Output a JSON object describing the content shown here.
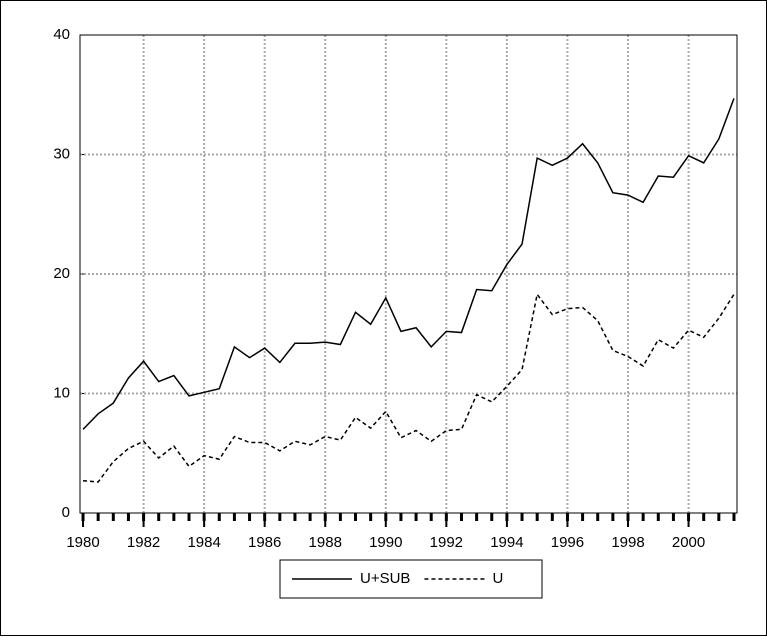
{
  "chart_data": {
    "type": "line",
    "x": [
      1980,
      1980.5,
      1981,
      1981.5,
      1982,
      1982.5,
      1983,
      1983.5,
      1984,
      1984.5,
      1985,
      1985.5,
      1986,
      1986.5,
      1987,
      1987.5,
      1988,
      1988.5,
      1989,
      1989.5,
      1990,
      1990.5,
      1991,
      1991.5,
      1992,
      1992.5,
      1993,
      1993.5,
      1994,
      1994.5,
      1995,
      1995.5,
      1996,
      1996.5,
      1997,
      1997.5,
      1998,
      1998.5,
      1999,
      1999.5,
      2000,
      2000.5,
      2001,
      2001.5
    ],
    "series": [
      {
        "name": "U+SUB",
        "color": "#000000",
        "dash": "none",
        "values": [
          7.0,
          8.3,
          9.2,
          11.3,
          12.7,
          11.0,
          11.5,
          9.8,
          10.1,
          10.4,
          13.9,
          13.0,
          13.8,
          12.6,
          14.2,
          14.2,
          14.3,
          14.1,
          16.8,
          15.8,
          18.0,
          15.2,
          15.5,
          13.9,
          15.2,
          15.1,
          18.7,
          18.6,
          20.8,
          22.5,
          29.7,
          29.1,
          29.7,
          30.9,
          29.3,
          26.8,
          26.6,
          26.0,
          28.2,
          28.1,
          29.9,
          29.3,
          31.3,
          34.7
        ]
      },
      {
        "name": "U",
        "color": "#000000",
        "dash": "4 3",
        "values": [
          2.7,
          2.6,
          4.3,
          5.4,
          6.0,
          4.6,
          5.6,
          3.9,
          4.8,
          4.5,
          6.4,
          5.9,
          5.9,
          5.2,
          6.0,
          5.7,
          6.4,
          6.1,
          8.0,
          7.1,
          8.5,
          6.3,
          6.9,
          6.0,
          6.9,
          7.0,
          9.9,
          9.3,
          10.6,
          12.0,
          18.3,
          16.6,
          17.1,
          17.2,
          16.1,
          13.6,
          13.1,
          12.3,
          14.5,
          13.8,
          15.3,
          14.7,
          16.3,
          18.3
        ]
      }
    ],
    "xlim": [
      1979.9,
      2001.6
    ],
    "xticks": [
      1980,
      1982,
      1984,
      1986,
      1988,
      1990,
      1992,
      1994,
      1996,
      1998,
      2000
    ],
    "ylim": [
      0,
      40
    ],
    "yticks": [
      0,
      10,
      20,
      30,
      40
    ],
    "grid": true
  }
}
